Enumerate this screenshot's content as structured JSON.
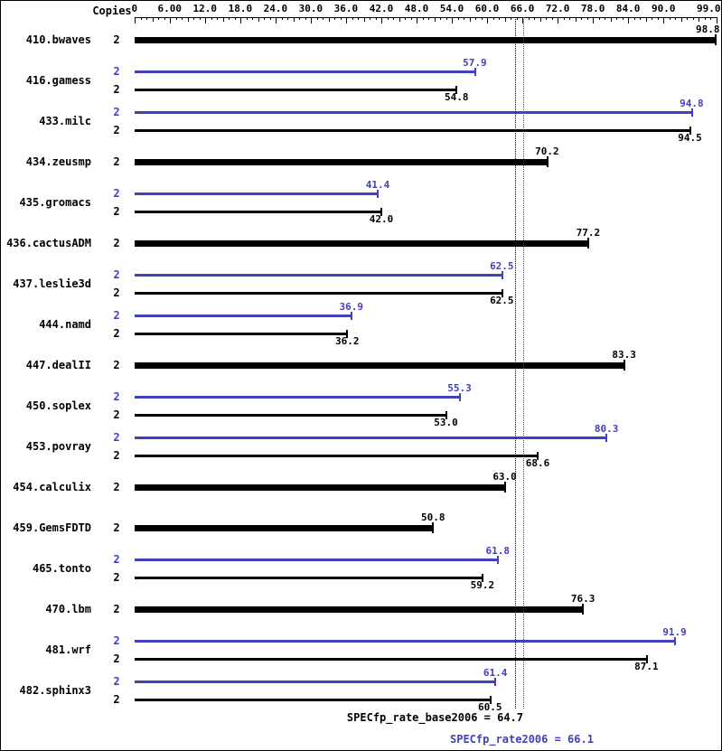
{
  "chart_data": {
    "type": "bar",
    "orientation": "horizontal",
    "copies_header": "Copies",
    "xlim": [
      0,
      99
    ],
    "minor_tick_step": 1,
    "grid": false,
    "axis_tick_labels": [
      {
        "value": 0,
        "label": "0"
      },
      {
        "value": 6,
        "label": "6.00"
      },
      {
        "value": 12,
        "label": "12.0"
      },
      {
        "value": 18,
        "label": "18.0"
      },
      {
        "value": 24,
        "label": "24.0"
      },
      {
        "value": 30,
        "label": "30.0"
      },
      {
        "value": 36,
        "label": "36.0"
      },
      {
        "value": 42,
        "label": "42.0"
      },
      {
        "value": 48,
        "label": "48.0"
      },
      {
        "value": 54,
        "label": "54.0"
      },
      {
        "value": 60,
        "label": "60.0"
      },
      {
        "value": 66,
        "label": "66.0"
      },
      {
        "value": 72,
        "label": "72.0"
      },
      {
        "value": 78,
        "label": "78.0"
      },
      {
        "value": 84,
        "label": "84.0"
      },
      {
        "value": 90,
        "label": "90.0"
      },
      {
        "value": 99,
        "label": "99.0"
      }
    ],
    "series_colors": {
      "peak": "#4040c0",
      "base": "#000000"
    },
    "benchmarks": [
      {
        "name": "410.bwaves",
        "copies": "2",
        "base": "98.8",
        "peak": null
      },
      {
        "name": "416.gamess",
        "copies": "2",
        "base": "54.8",
        "peak": "57.9"
      },
      {
        "name": "433.milc",
        "copies": "2",
        "base": "94.5",
        "peak": "94.8"
      },
      {
        "name": "434.zeusmp",
        "copies": "2",
        "base": "70.2",
        "peak": null
      },
      {
        "name": "435.gromacs",
        "copies": "2",
        "base": "42.0",
        "peak": "41.4"
      },
      {
        "name": "436.cactusADM",
        "copies": "2",
        "base": "77.2",
        "peak": null
      },
      {
        "name": "437.leslie3d",
        "copies": "2",
        "base": "62.5",
        "peak": "62.5"
      },
      {
        "name": "444.namd",
        "copies": "2",
        "base": "36.2",
        "peak": "36.9"
      },
      {
        "name": "447.dealII",
        "copies": "2",
        "base": "83.3",
        "peak": null
      },
      {
        "name": "450.soplex",
        "copies": "2",
        "base": "53.0",
        "peak": "55.3"
      },
      {
        "name": "453.povray",
        "copies": "2",
        "base": "68.6",
        "peak": "80.3"
      },
      {
        "name": "454.calculix",
        "copies": "2",
        "base": "63.0",
        "peak": null
      },
      {
        "name": "459.GemsFDTD",
        "copies": "2",
        "base": "50.8",
        "peak": null
      },
      {
        "name": "465.tonto",
        "copies": "2",
        "base": "59.2",
        "peak": "61.8"
      },
      {
        "name": "470.lbm",
        "copies": "2",
        "base": "76.3",
        "peak": null
      },
      {
        "name": "481.wrf",
        "copies": "2",
        "base": "87.1",
        "peak": "91.9"
      },
      {
        "name": "482.sphinx3",
        "copies": "2",
        "base": "60.5",
        "peak": "61.4"
      }
    ],
    "reference_lines": [
      {
        "label": "SPECfp_rate_base2006 = 64.7",
        "value": 64.7,
        "series": "base"
      },
      {
        "label": "SPECfp_rate2006 = 66.1",
        "value": 66.1,
        "series": "peak"
      }
    ],
    "base_summary": "SPECfp_rate_base2006 = 64.7",
    "peak_summary": "SPECfp_rate2006 = 66.1"
  }
}
